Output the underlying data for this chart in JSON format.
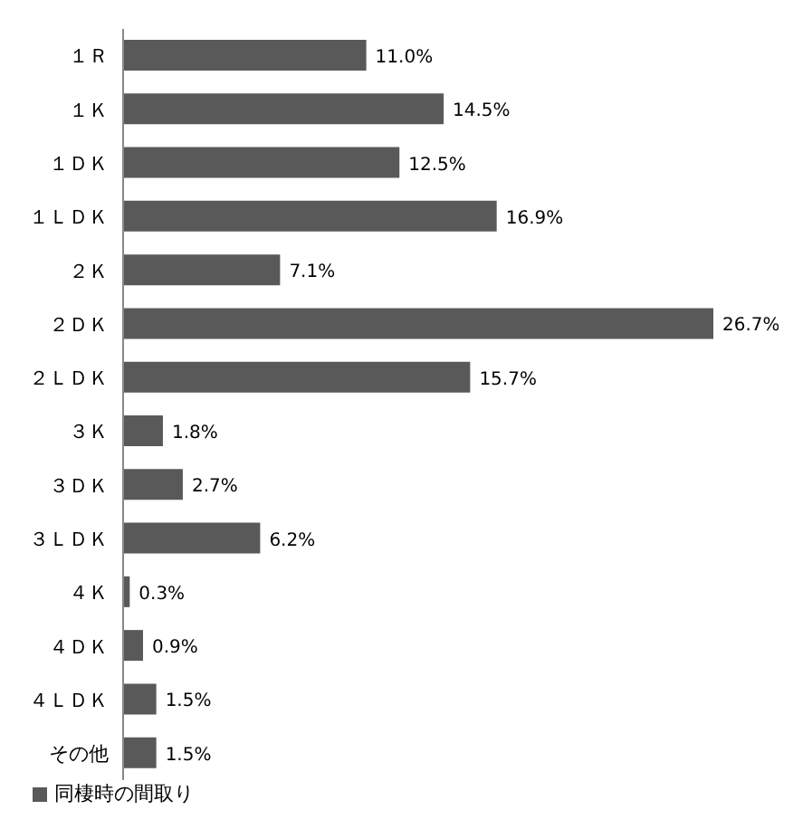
{
  "chart_data": {
    "type": "bar",
    "orientation": "horizontal",
    "categories": [
      "１Ｒ",
      "１Ｋ",
      "１ＤＫ",
      "１ＬＤＫ",
      "２Ｋ",
      "２ＤＫ",
      "２ＬＤＫ",
      "３Ｋ",
      "３ＤＫ",
      "３ＬＤＫ",
      "４Ｋ",
      "４ＤＫ",
      "４ＬＤＫ",
      "その他"
    ],
    "series": [
      {
        "name": "同棲時の間取り",
        "color": "#595959",
        "values": [
          11.0,
          14.5,
          12.5,
          16.9,
          7.1,
          26.7,
          15.7,
          1.8,
          2.7,
          6.2,
          0.3,
          0.9,
          1.5,
          1.5
        ],
        "value_labels": [
          "11.0%",
          "14.5%",
          "12.5%",
          "16.9%",
          "7.1%",
          "26.7%",
          "15.7%",
          "1.8%",
          "2.7%",
          "6.2%",
          "0.3%",
          "0.9%",
          "1.5%",
          "1.5%"
        ]
      }
    ],
    "legend": "bottom left",
    "grid": false
  }
}
